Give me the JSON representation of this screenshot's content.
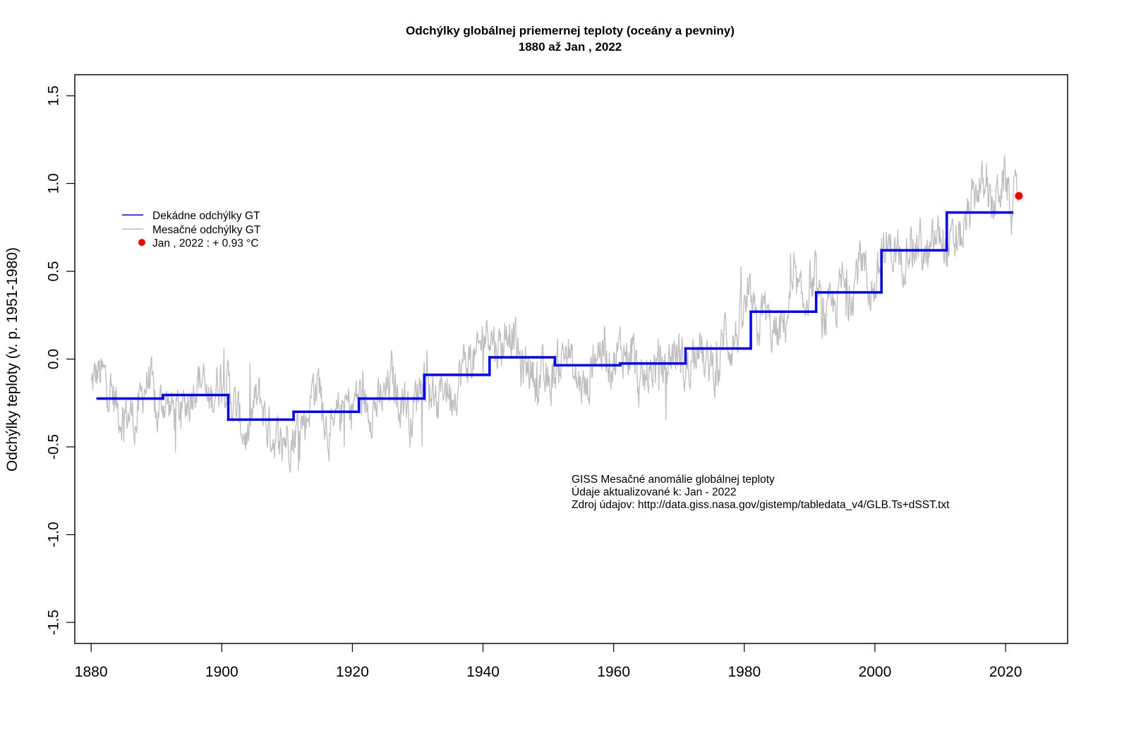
{
  "chart_data": {
    "type": "line",
    "title": "Odchýlky globálnej priemernej teploty (oceány a pevniny)",
    "subtitle": "1880  až  Jan ,  2022",
    "xlabel": "",
    "ylabel": "Odchýlky teploty (v. p. 1951-1980)",
    "xlim": [
      1877.5,
      2029.5
    ],
    "ylim": [
      -1.62,
      1.62
    ],
    "x_ticks": [
      1880,
      1900,
      1920,
      1940,
      1960,
      1980,
      2000,
      2020
    ],
    "x_tick_labels": [
      "1880",
      "1900",
      "1920",
      "1940",
      "1960",
      "1980",
      "2000",
      "2020"
    ],
    "y_ticks": [
      -1.5,
      -1.0,
      -0.5,
      0.0,
      0.5,
      1.0,
      1.5
    ],
    "y_tick_labels": [
      "-1.5",
      "-1.0",
      "-0.5",
      "0.0",
      "0.5",
      "1.0",
      "1.5"
    ],
    "grid": false,
    "legend_position": "top-left",
    "series": [
      {
        "name": "Dekádne odchýlky GT",
        "kind": "step",
        "color": "#0000ff",
        "decades": [
          {
            "start": 1881,
            "end": 1891,
            "value": -0.225
          },
          {
            "start": 1891,
            "end": 1901,
            "value": -0.205
          },
          {
            "start": 1901,
            "end": 1911,
            "value": -0.345
          },
          {
            "start": 1911,
            "end": 1921,
            "value": -0.3
          },
          {
            "start": 1921,
            "end": 1931,
            "value": -0.225
          },
          {
            "start": 1931,
            "end": 1941,
            "value": -0.09
          },
          {
            "start": 1941,
            "end": 1951,
            "value": 0.01
          },
          {
            "start": 1951,
            "end": 1961,
            "value": -0.035
          },
          {
            "start": 1961,
            "end": 1971,
            "value": -0.025
          },
          {
            "start": 1971,
            "end": 1981,
            "value": 0.06
          },
          {
            "start": 1981,
            "end": 1991,
            "value": 0.27
          },
          {
            "start": 1991,
            "end": 2001,
            "value": 0.38
          },
          {
            "start": 2001,
            "end": 2011,
            "value": 0.62
          },
          {
            "start": 2011,
            "end": 2021,
            "value": 0.835
          }
        ]
      },
      {
        "name": "Mesačné odchýlky GT",
        "kind": "line",
        "color": "#bebebe",
        "note": "approximate annual-mean trace of the monthly anomaly series (Jan 1880 - Jan 2022)",
        "x": [
          1880,
          1881,
          1882,
          1883,
          1884,
          1885,
          1886,
          1887,
          1888,
          1889,
          1890,
          1891,
          1892,
          1893,
          1894,
          1895,
          1896,
          1897,
          1898,
          1899,
          1900,
          1901,
          1902,
          1903,
          1904,
          1905,
          1906,
          1907,
          1908,
          1909,
          1910,
          1911,
          1912,
          1913,
          1914,
          1915,
          1916,
          1917,
          1918,
          1919,
          1920,
          1921,
          1922,
          1923,
          1924,
          1925,
          1926,
          1927,
          1928,
          1929,
          1930,
          1931,
          1932,
          1933,
          1934,
          1935,
          1936,
          1937,
          1938,
          1939,
          1940,
          1941,
          1942,
          1943,
          1944,
          1945,
          1946,
          1947,
          1948,
          1949,
          1950,
          1951,
          1952,
          1953,
          1954,
          1955,
          1956,
          1957,
          1958,
          1959,
          1960,
          1961,
          1962,
          1963,
          1964,
          1965,
          1966,
          1967,
          1968,
          1969,
          1970,
          1971,
          1972,
          1973,
          1974,
          1975,
          1976,
          1977,
          1978,
          1979,
          1980,
          1981,
          1982,
          1983,
          1984,
          1985,
          1986,
          1987,
          1988,
          1989,
          1990,
          1991,
          1992,
          1993,
          1994,
          1995,
          1996,
          1997,
          1998,
          1999,
          2000,
          2001,
          2002,
          2003,
          2004,
          2005,
          2006,
          2007,
          2008,
          2009,
          2010,
          2011,
          2012,
          2013,
          2014,
          2015,
          2016,
          2017,
          2018,
          2019,
          2020,
          2021
        ],
        "values": [
          -0.16,
          -0.08,
          -0.11,
          -0.17,
          -0.28,
          -0.33,
          -0.31,
          -0.36,
          -0.17,
          -0.1,
          -0.35,
          -0.22,
          -0.27,
          -0.31,
          -0.3,
          -0.22,
          -0.11,
          -0.11,
          -0.27,
          -0.17,
          -0.08,
          -0.15,
          -0.28,
          -0.37,
          -0.47,
          -0.26,
          -0.22,
          -0.39,
          -0.43,
          -0.48,
          -0.43,
          -0.44,
          -0.36,
          -0.34,
          -0.15,
          -0.14,
          -0.36,
          -0.46,
          -0.3,
          -0.27,
          -0.27,
          -0.19,
          -0.28,
          -0.26,
          -0.27,
          -0.22,
          -0.1,
          -0.22,
          -0.2,
          -0.36,
          -0.16,
          -0.09,
          -0.16,
          -0.29,
          -0.12,
          -0.2,
          -0.15,
          -0.03,
          0.0,
          -0.02,
          0.13,
          0.19,
          0.07,
          0.09,
          0.2,
          0.09,
          -0.07,
          -0.03,
          -0.11,
          -0.11,
          -0.17,
          -0.07,
          0.01,
          0.08,
          -0.13,
          -0.14,
          -0.19,
          0.05,
          0.06,
          0.03,
          -0.03,
          0.06,
          0.03,
          0.05,
          -0.2,
          -0.11,
          -0.06,
          -0.02,
          -0.08,
          0.05,
          0.03,
          -0.08,
          0.01,
          0.16,
          -0.07,
          -0.01,
          -0.1,
          0.18,
          0.07,
          0.16,
          0.26,
          0.32,
          0.14,
          0.31,
          0.16,
          0.12,
          0.18,
          0.33,
          0.4,
          0.28,
          0.44,
          0.41,
          0.22,
          0.24,
          0.31,
          0.44,
          0.33,
          0.47,
          0.62,
          0.4,
          0.4,
          0.54,
          0.63,
          0.62,
          0.54,
          0.68,
          0.64,
          0.66,
          0.54,
          0.65,
          0.72,
          0.61,
          0.64,
          0.68,
          0.75,
          0.9,
          1.01,
          0.92,
          0.85,
          0.98,
          1.02,
          0.85
        ]
      }
    ],
    "highlight_point": {
      "x": 2022.04,
      "value": 0.93,
      "color": "#ff0000",
      "label": "Jan , 2022 : + 0.93 °C"
    },
    "legend": [
      {
        "label": "Dekádne odchýlky GT",
        "symbol": "line",
        "color": "#0000ff"
      },
      {
        "label": "Mesačné odchýlky GT",
        "symbol": "line",
        "color": "#bebebe"
      },
      {
        "label": "Jan , 2022 : + 0.93 °C",
        "symbol": "dot",
        "color": "#ff0000"
      }
    ],
    "annotations": [
      "GISS Mesačné anomálie globálnej teploty",
      "Údaje aktualizované k: Jan - 2022",
      "Zdroj údajov: http://data.giss.nasa.gov/gistemp/tabledata_v4/GLB.Ts+dSST.txt"
    ]
  }
}
